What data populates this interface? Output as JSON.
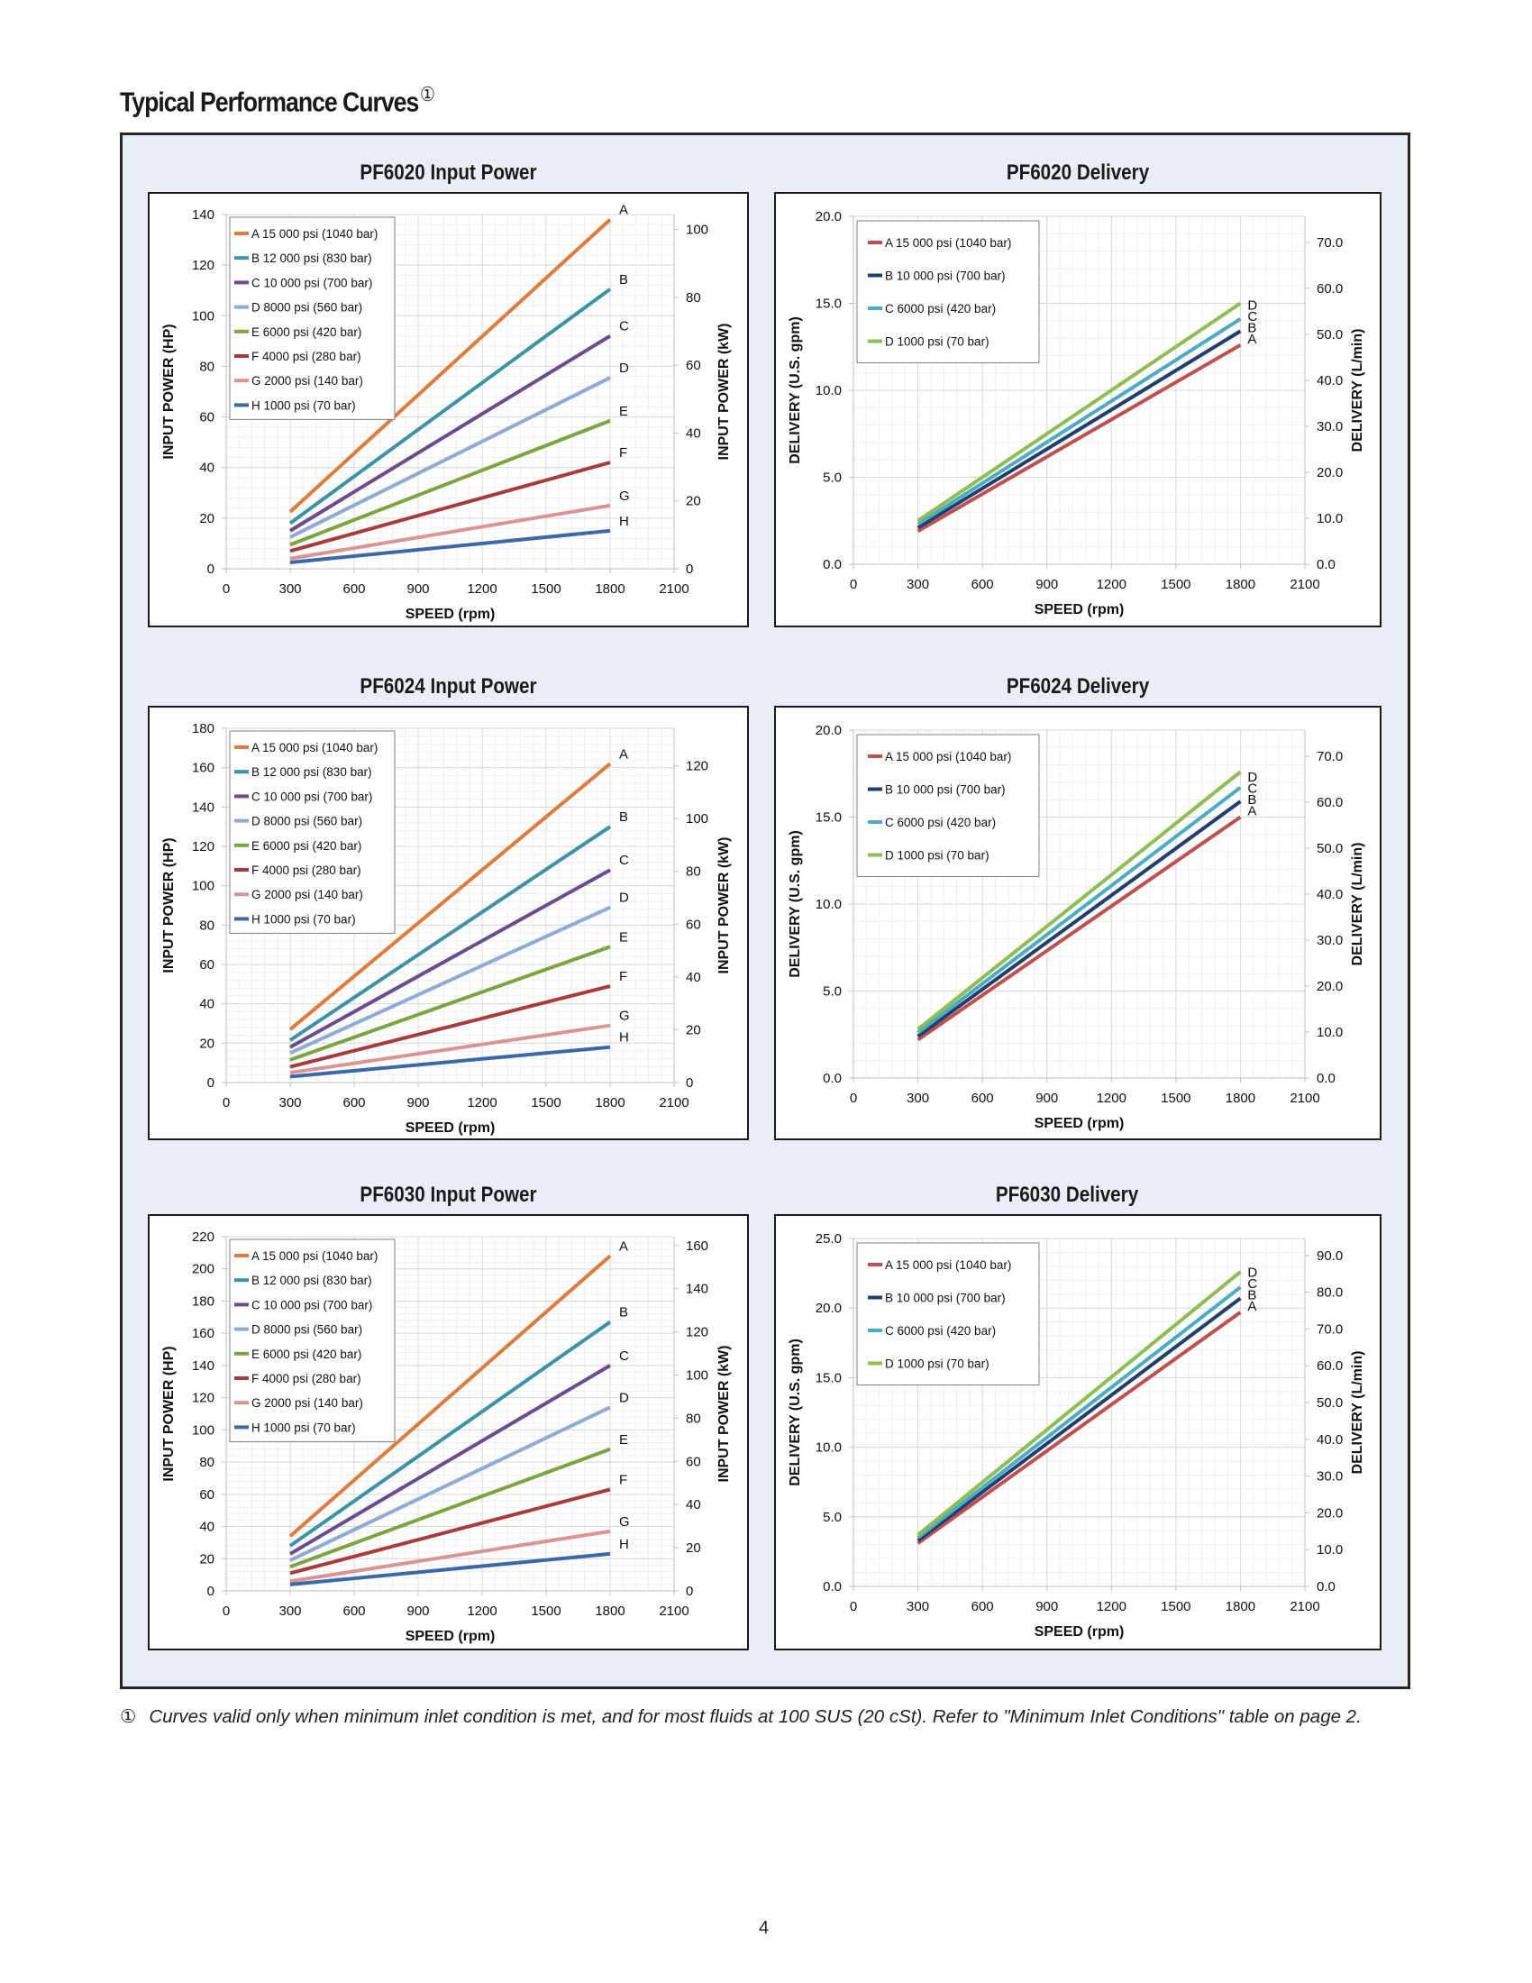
{
  "page": {
    "title": "Typical Performance Curves",
    "title_mark": "①",
    "footnote_mark": "①",
    "footnote": "Curves valid only when minimum inlet condition is met, and for most fluids at 100 SUS (20 cSt). Refer to \"Minimum Inlet Conditions\" table on page 2.",
    "page_number": "4",
    "colors": {
      "frame_bg": "#e9eef6",
      "grid_major": "#d9d9d9",
      "grid_minor": "#efefef"
    }
  },
  "chart_data": [
    {
      "id": "pf6020-power",
      "type": "line",
      "title": "PF6020 Input Power",
      "xlabel": "SPEED (rpm)",
      "ylabel": "INPUT POWER (HP)",
      "y2label": "INPUT POWER (kW)",
      "xlim": [
        0,
        2100
      ],
      "xticks": [
        0,
        300,
        600,
        900,
        1200,
        1500,
        1800,
        2100
      ],
      "ylim": [
        0,
        140
      ],
      "yticks": [
        0,
        20,
        40,
        60,
        80,
        100,
        120,
        140
      ],
      "y2lim": [
        0,
        104.4
      ],
      "y2ticks": [
        0,
        20,
        40,
        60,
        80,
        100
      ],
      "y_tick_format": "int",
      "grid": true,
      "legend_position": "top-left",
      "series": [
        {
          "key": "A",
          "name": "A  15 000 psi (1040 bar)",
          "color": "#e07b39",
          "x": [
            300,
            1800
          ],
          "values": [
            22.5,
            138
          ]
        },
        {
          "key": "B",
          "name": "B  12 000 psi (830 bar)",
          "color": "#3a93a7",
          "x": [
            300,
            1800
          ],
          "values": [
            18,
            110.5
          ]
        },
        {
          "key": "C",
          "name": "C  10 000 psi (700 bar)",
          "color": "#6b4c8f",
          "x": [
            300,
            1800
          ],
          "values": [
            15,
            92
          ]
        },
        {
          "key": "D",
          "name": "D  8000 psi (560 bar)",
          "color": "#8eaad6",
          "x": [
            300,
            1800
          ],
          "values": [
            12.5,
            75.5
          ]
        },
        {
          "key": "E",
          "name": "E  6000 psi (420 bar)",
          "color": "#7aa53f",
          "x": [
            300,
            1800
          ],
          "values": [
            9.5,
            58.5
          ]
        },
        {
          "key": "F",
          "name": "F  4000 psi (280 bar)",
          "color": "#a83c3c",
          "x": [
            300,
            1800
          ],
          "values": [
            7,
            42
          ]
        },
        {
          "key": "G",
          "name": "G  2000 psi (140 bar)",
          "color": "#d99594",
          "x": [
            300,
            1800
          ],
          "values": [
            4,
            25
          ]
        },
        {
          "key": "H",
          "name": "H  1000 psi (70 bar)",
          "color": "#3c68a8",
          "x": [
            300,
            1800
          ],
          "values": [
            2.5,
            15
          ]
        }
      ]
    },
    {
      "id": "pf6020-delivery",
      "type": "line",
      "title": "PF6020 Delivery",
      "xlabel": "SPEED (rpm)",
      "ylabel": "DELIVERY (U.S. gpm)",
      "y2label": "DELIVERY (L/min)",
      "xlim": [
        0,
        2100
      ],
      "xticks": [
        0,
        300,
        600,
        900,
        1200,
        1500,
        1800,
        2100
      ],
      "ylim": [
        0,
        20
      ],
      "yticks": [
        0,
        5,
        10,
        15,
        20
      ],
      "y2lim": [
        0,
        75.7
      ],
      "y2ticks": [
        0,
        10,
        20,
        30,
        40,
        50,
        60,
        70
      ],
      "y_tick_format": "1dp",
      "grid": true,
      "legend_position": "top-left",
      "series": [
        {
          "key": "A",
          "name": "A  15 000 psi (1040 bar)",
          "color": "#c0504d",
          "x": [
            300,
            1800
          ],
          "values": [
            1.9,
            12.6
          ]
        },
        {
          "key": "B",
          "name": "B  10 000 psi (700 bar)",
          "color": "#1f3f6e",
          "x": [
            300,
            1800
          ],
          "values": [
            2.1,
            13.4
          ]
        },
        {
          "key": "C",
          "name": "C  6000 psi (420 bar)",
          "color": "#4bacc6",
          "x": [
            300,
            1800
          ],
          "values": [
            2.3,
            14.1
          ]
        },
        {
          "key": "D",
          "name": "D  1000 psi (70 bar)",
          "color": "#8cbf4f",
          "x": [
            300,
            1800
          ],
          "values": [
            2.5,
            15.0
          ]
        }
      ]
    },
    {
      "id": "pf6024-power",
      "type": "line",
      "title": "PF6024 Input Power",
      "xlabel": "SPEED (rpm)",
      "ylabel": "INPUT POWER (HP)",
      "y2label": "INPUT POWER (kW)",
      "xlim": [
        0,
        2100
      ],
      "xticks": [
        0,
        300,
        600,
        900,
        1200,
        1500,
        1800,
        2100
      ],
      "ylim": [
        0,
        180
      ],
      "yticks": [
        0,
        20,
        40,
        60,
        80,
        100,
        120,
        140,
        160,
        180
      ],
      "y2lim": [
        0,
        134.2
      ],
      "y2ticks": [
        0,
        20,
        40,
        60,
        80,
        100,
        120
      ],
      "y_tick_format": "int",
      "grid": true,
      "legend_position": "top-left",
      "series": [
        {
          "key": "A",
          "name": "A  15 000 psi (1040 bar)",
          "color": "#e07b39",
          "x": [
            300,
            1800
          ],
          "values": [
            27,
            162
          ]
        },
        {
          "key": "B",
          "name": "B  12 000 psi (830 bar)",
          "color": "#3a93a7",
          "x": [
            300,
            1800
          ],
          "values": [
            21.5,
            130
          ]
        },
        {
          "key": "C",
          "name": "C  10 000 psi (700 bar)",
          "color": "#6b4c8f",
          "x": [
            300,
            1800
          ],
          "values": [
            18,
            108
          ]
        },
        {
          "key": "D",
          "name": "D  8000 psi (560 bar)",
          "color": "#8eaad6",
          "x": [
            300,
            1800
          ],
          "values": [
            15,
            89
          ]
        },
        {
          "key": "E",
          "name": "E  6000 psi (420 bar)",
          "color": "#7aa53f",
          "x": [
            300,
            1800
          ],
          "values": [
            11.5,
            69
          ]
        },
        {
          "key": "F",
          "name": "F  4000 psi (280 bar)",
          "color": "#a83c3c",
          "x": [
            300,
            1800
          ],
          "values": [
            8,
            49
          ]
        },
        {
          "key": "G",
          "name": "G  2000 psi (140 bar)",
          "color": "#d99594",
          "x": [
            300,
            1800
          ],
          "values": [
            5,
            29
          ]
        },
        {
          "key": "H",
          "name": "H  1000 psi (70 bar)",
          "color": "#3c68a8",
          "x": [
            300,
            1800
          ],
          "values": [
            3,
            18
          ]
        }
      ]
    },
    {
      "id": "pf6024-delivery",
      "type": "line",
      "title": "PF6024 Delivery",
      "xlabel": "SPEED (rpm)",
      "ylabel": "DELIVERY (U.S. gpm)",
      "y2label": "DELIVERY (L/min)",
      "xlim": [
        0,
        2100
      ],
      "xticks": [
        0,
        300,
        600,
        900,
        1200,
        1500,
        1800,
        2100
      ],
      "ylim": [
        0,
        20
      ],
      "yticks": [
        0,
        5,
        10,
        15,
        20
      ],
      "y2lim": [
        0,
        75.7
      ],
      "y2ticks": [
        0,
        10,
        20,
        30,
        40,
        50,
        60,
        70
      ],
      "y_tick_format": "1dp",
      "grid": true,
      "legend_position": "top-left",
      "series": [
        {
          "key": "A",
          "name": "A  15 000 psi (1040 bar)",
          "color": "#c0504d",
          "x": [
            300,
            1800
          ],
          "values": [
            2.2,
            15.0
          ]
        },
        {
          "key": "B",
          "name": "B  10 000 psi (700 bar)",
          "color": "#1f3f6e",
          "x": [
            300,
            1800
          ],
          "values": [
            2.4,
            15.9
          ]
        },
        {
          "key": "C",
          "name": "C  6000 psi (420 bar)",
          "color": "#4bacc6",
          "x": [
            300,
            1800
          ],
          "values": [
            2.6,
            16.7
          ]
        },
        {
          "key": "D",
          "name": "D  1000 psi (70 bar)",
          "color": "#8cbf4f",
          "x": [
            300,
            1800
          ],
          "values": [
            2.8,
            17.6
          ]
        }
      ]
    },
    {
      "id": "pf6030-power",
      "type": "line",
      "title": "PF6030 Input Power",
      "xlabel": "SPEED (rpm)",
      "ylabel": "INPUT POWER (HP)",
      "y2label": "INPUT POWER (kW)",
      "xlim": [
        0,
        2100
      ],
      "xticks": [
        0,
        300,
        600,
        900,
        1200,
        1500,
        1800,
        2100
      ],
      "ylim": [
        0,
        220
      ],
      "yticks": [
        0,
        20,
        40,
        60,
        80,
        100,
        120,
        140,
        160,
        180,
        200,
        220
      ],
      "y2lim": [
        0,
        164.1
      ],
      "y2ticks": [
        0,
        20,
        40,
        60,
        80,
        100,
        120,
        140,
        160
      ],
      "y_tick_format": "int",
      "grid": true,
      "legend_position": "top-left",
      "series": [
        {
          "key": "A",
          "name": "A  15 000 psi (1040 bar)",
          "color": "#e07b39",
          "x": [
            300,
            1800
          ],
          "values": [
            34,
            208
          ]
        },
        {
          "key": "B",
          "name": "B  12 000 psi (830 bar)",
          "color": "#3a93a7",
          "x": [
            300,
            1800
          ],
          "values": [
            28,
            167
          ]
        },
        {
          "key": "C",
          "name": "C  10 000 psi (700 bar)",
          "color": "#6b4c8f",
          "x": [
            300,
            1800
          ],
          "values": [
            23,
            140
          ]
        },
        {
          "key": "D",
          "name": "D  8000 psi (560 bar)",
          "color": "#8eaad6",
          "x": [
            300,
            1800
          ],
          "values": [
            19,
            114
          ]
        },
        {
          "key": "E",
          "name": "E  6000 psi (420 bar)",
          "color": "#7aa53f",
          "x": [
            300,
            1800
          ],
          "values": [
            15,
            88
          ]
        },
        {
          "key": "F",
          "name": "F  4000 psi (280 bar)",
          "color": "#a83c3c",
          "x": [
            300,
            1800
          ],
          "values": [
            11,
            63
          ]
        },
        {
          "key": "G",
          "name": "G  2000 psi (140 bar)",
          "color": "#d99594",
          "x": [
            300,
            1800
          ],
          "values": [
            6,
            37
          ]
        },
        {
          "key": "H",
          "name": "H  1000 psi (70 bar)",
          "color": "#3c68a8",
          "x": [
            300,
            1800
          ],
          "values": [
            4,
            23
          ]
        }
      ]
    },
    {
      "id": "pf6030-delivery",
      "type": "line",
      "title": "PF6030 Delivery",
      "xlabel": "SPEED (rpm)",
      "ylabel": "DELIVERY (U.S. gpm)",
      "y2label": "DELIVERY (L/min)",
      "xlim": [
        0,
        2100
      ],
      "xticks": [
        0,
        300,
        600,
        900,
        1200,
        1500,
        1800,
        2100
      ],
      "ylim": [
        0,
        25
      ],
      "yticks": [
        0,
        5,
        10,
        15,
        20,
        25
      ],
      "y2lim": [
        0,
        94.6
      ],
      "y2ticks": [
        0,
        10,
        20,
        30,
        40,
        50,
        60,
        70,
        80,
        90
      ],
      "y_tick_format": "1dp",
      "grid": true,
      "legend_position": "top-left",
      "series": [
        {
          "key": "A",
          "name": "A  15 000 psi (1040 bar)",
          "color": "#c0504d",
          "x": [
            300,
            1800
          ],
          "values": [
            3.1,
            19.7
          ]
        },
        {
          "key": "B",
          "name": "B  10 000 psi (700 bar)",
          "color": "#1f3f6e",
          "x": [
            300,
            1800
          ],
          "values": [
            3.3,
            20.7
          ]
        },
        {
          "key": "C",
          "name": "C  6000 psi (420 bar)",
          "color": "#4bacc6",
          "x": [
            300,
            1800
          ],
          "values": [
            3.5,
            21.5
          ]
        },
        {
          "key": "D",
          "name": "D  1000 psi (70 bar)",
          "color": "#8cbf4f",
          "x": [
            300,
            1800
          ],
          "values": [
            3.7,
            22.6
          ]
        }
      ]
    }
  ]
}
